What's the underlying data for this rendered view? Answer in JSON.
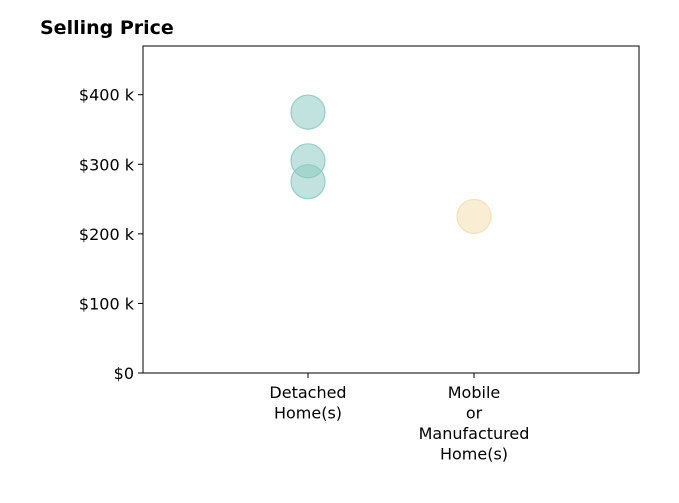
{
  "chart_data": {
    "type": "scatter",
    "title": "Selling Price",
    "xlabel": "",
    "ylabel": "",
    "categories": [
      [
        "Detached",
        "Home(s)"
      ],
      [
        "Mobile",
        "or",
        "Manufactured",
        "Home(s)"
      ]
    ],
    "y_ticks": [
      0,
      100000,
      200000,
      300000,
      400000
    ],
    "y_tick_labels": [
      "$0",
      "$100 k",
      "$200 k",
      "$300 k",
      "$400 k"
    ],
    "ylim": [
      0,
      470000
    ],
    "grid": false,
    "legend": "none",
    "points": [
      {
        "category_index": 0,
        "y": 375000,
        "color": "#8ecac3"
      },
      {
        "category_index": 0,
        "y": 305000,
        "color": "#8ecac3"
      },
      {
        "category_index": 0,
        "y": 275000,
        "color": "#8ecac3"
      },
      {
        "category_index": 1,
        "y": 225000,
        "color": "#f4dfae"
      }
    ]
  }
}
